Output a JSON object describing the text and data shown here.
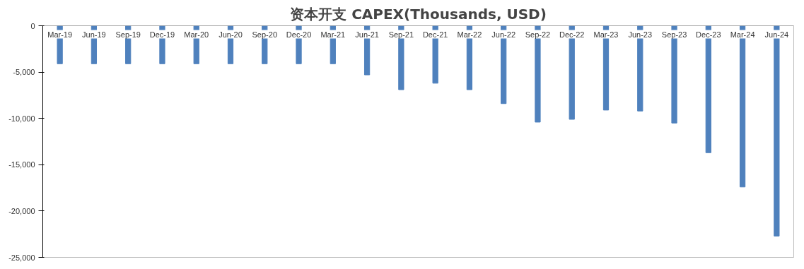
{
  "chart_data": {
    "type": "bar",
    "title": "资本开支 CAPEX(Thousands, USD)",
    "categories": [
      "Mar-19",
      "Jun-19",
      "Sep-19",
      "Dec-19",
      "Mar-20",
      "Jun-20",
      "Sep-20",
      "Dec-20",
      "Mar-21",
      "Jun-21",
      "Sep-21",
      "Dec-21",
      "Mar-22",
      "Jun-22",
      "Sep-22",
      "Dec-22",
      "Mar-23",
      "Jun-23",
      "Sep-23",
      "Dec-23",
      "Mar-24",
      "Jun-24"
    ],
    "values": [
      -4100,
      -4100,
      -4100,
      -4100,
      -4100,
      -4100,
      -4100,
      -4100,
      -4100,
      -5300,
      -6900,
      -6200,
      -6900,
      -8400,
      -10400,
      -10100,
      -9100,
      -9200,
      -10500,
      -13700,
      -17400,
      -22700
    ],
    "color": "#4f81bd",
    "ylim": [
      -25000,
      0
    ],
    "yticks": [
      {
        "value": -25000,
        "label": "-25,000"
      },
      {
        "value": -20000,
        "label": "-20,000"
      },
      {
        "value": -15000,
        "label": "-15,000"
      },
      {
        "value": -10000,
        "label": "-10,000"
      },
      {
        "value": -5000,
        "label": "-5,000"
      },
      0
    ],
    "grid": false
  }
}
